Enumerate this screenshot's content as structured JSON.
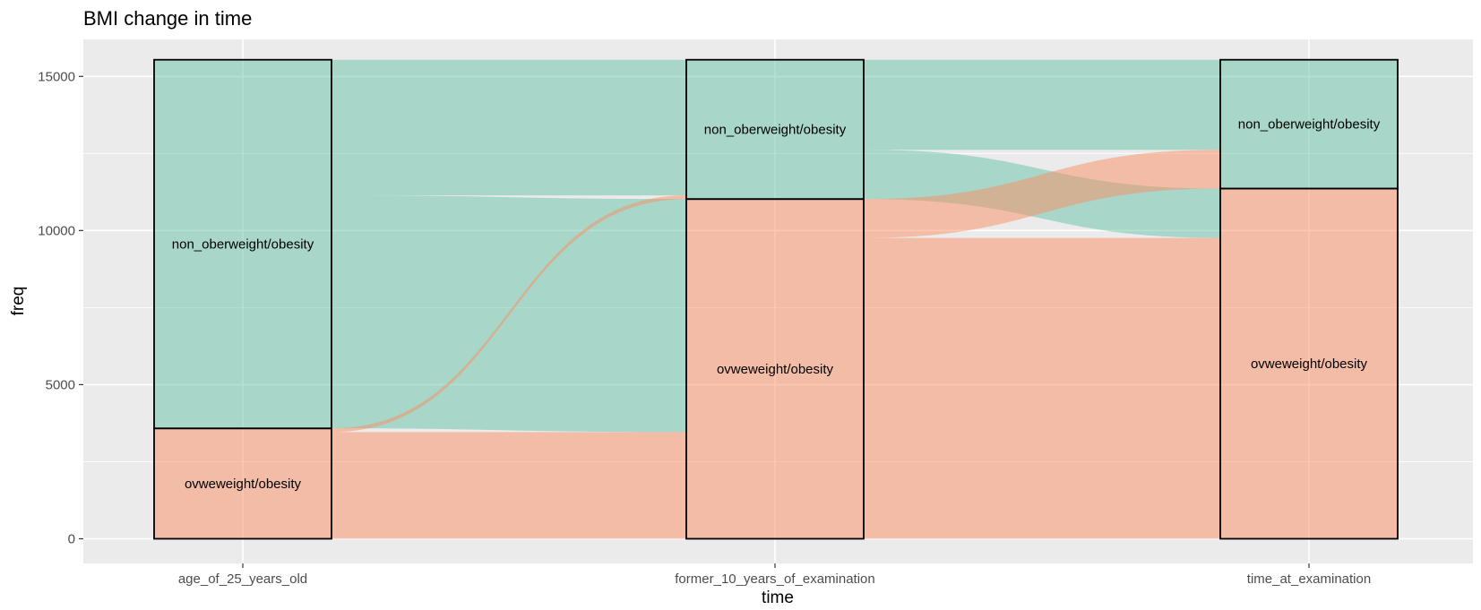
{
  "chart_data": {
    "type": "alluvial",
    "title": "BMI change in time",
    "xlabel": "time",
    "ylabel": "freq",
    "ylim": [
      -800,
      16200
    ],
    "y_ticks": [
      0,
      5000,
      10000,
      15000
    ],
    "grid": true,
    "axes": [
      "age_of_25_years_old",
      "former_10_years_of_examination",
      "time_at_examination"
    ],
    "categories": [
      "non_oberweight/obesity",
      "ovweweight/obesity"
    ],
    "colors": {
      "non_oberweight/obesity": "#66c2a5",
      "ovweweight/obesity": "#fc8d62",
      "panel_background": "#ebebeb",
      "grid_line": "#ffffff"
    },
    "strata": [
      {
        "axis": "age_of_25_years_old",
        "category": "non_oberweight/obesity",
        "freq": 11960
      },
      {
        "axis": "age_of_25_years_old",
        "category": "ovweweight/obesity",
        "freq": 3580
      },
      {
        "axis": "former_10_years_of_examination",
        "category": "non_oberweight/obesity",
        "freq": 4520
      },
      {
        "axis": "former_10_years_of_examination",
        "category": "ovweweight/obesity",
        "freq": 11020
      },
      {
        "axis": "time_at_examination",
        "category": "non_oberweight/obesity",
        "freq": 4180
      },
      {
        "axis": "time_at_examination",
        "category": "ovweweight/obesity",
        "freq": 11360
      }
    ],
    "flows": [
      {
        "axis_from": 0,
        "axis_to": 1,
        "from": "non_oberweight/obesity",
        "to": "non_oberweight/obesity",
        "fill": "non_oberweight/obesity",
        "freq": 4400
      },
      {
        "axis_from": 0,
        "axis_to": 1,
        "from": "non_oberweight/obesity",
        "to": "ovweweight/obesity",
        "fill": "non_oberweight/obesity",
        "freq": 7560
      },
      {
        "axis_from": 0,
        "axis_to": 1,
        "from": "ovweweight/obesity",
        "to": "non_oberweight/obesity",
        "fill": "ovweweight/obesity",
        "freq": 120
      },
      {
        "axis_from": 0,
        "axis_to": 1,
        "from": "ovweweight/obesity",
        "to": "ovweweight/obesity",
        "fill": "ovweweight/obesity",
        "freq": 3460
      },
      {
        "axis_from": 1,
        "axis_to": 2,
        "from": "non_oberweight/obesity",
        "to": "non_oberweight/obesity",
        "fill": "non_oberweight/obesity",
        "freq": 2920
      },
      {
        "axis_from": 1,
        "axis_to": 2,
        "from": "non_oberweight/obesity",
        "to": "ovweweight/obesity",
        "fill": "non_oberweight/obesity",
        "freq": 1600
      },
      {
        "axis_from": 1,
        "axis_to": 2,
        "from": "ovweweight/obesity",
        "to": "non_oberweight/obesity",
        "fill": "ovweweight/obesity",
        "freq": 1260
      },
      {
        "axis_from": 1,
        "axis_to": 2,
        "from": "ovweweight/obesity",
        "to": "ovweweight/obesity",
        "fill": "ovweweight/obesity",
        "freq": 9760
      }
    ]
  }
}
